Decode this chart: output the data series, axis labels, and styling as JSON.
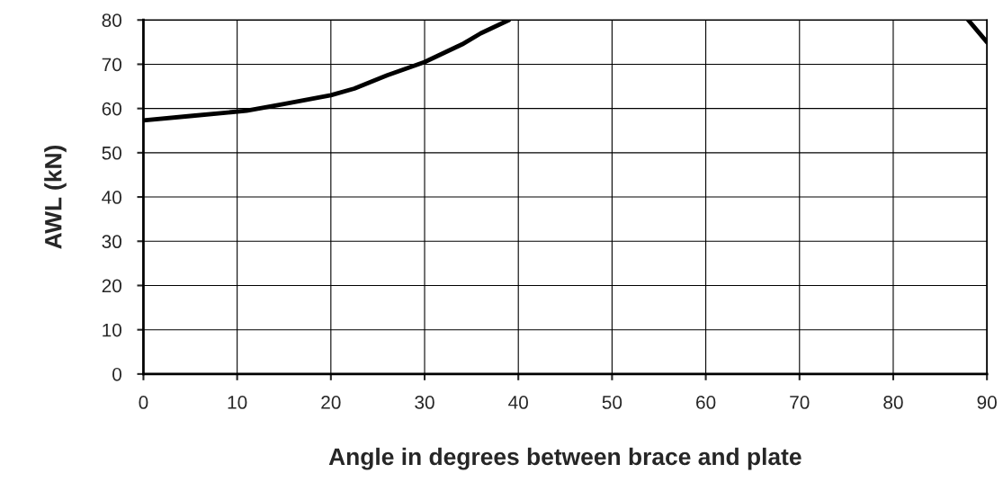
{
  "chart_data": {
    "type": "line",
    "xlabel": "Angle in degrees between brace and plate",
    "ylabel": "AWL (kN)",
    "x": [
      0,
      5,
      11,
      15,
      20,
      22.5,
      26,
      30,
      34,
      36,
      39,
      60,
      88,
      90
    ],
    "series": [
      {
        "color": "#000000",
        "values": [
          57.3,
          58.3,
          59.5,
          61,
          63,
          64.5,
          67.5,
          70.5,
          74.5,
          77,
          80,
          null,
          80,
          75
        ]
      }
    ],
    "xlim": [
      0,
      90
    ],
    "xticks": [
      0,
      10,
      20,
      30,
      40,
      50,
      60,
      70,
      80,
      90
    ],
    "ylim": [
      0,
      80
    ],
    "yticks": [
      0,
      10,
      20,
      30,
      40,
      50,
      60,
      70,
      80
    ],
    "grid": true,
    "marker": "none",
    "line_style": "solid"
  }
}
